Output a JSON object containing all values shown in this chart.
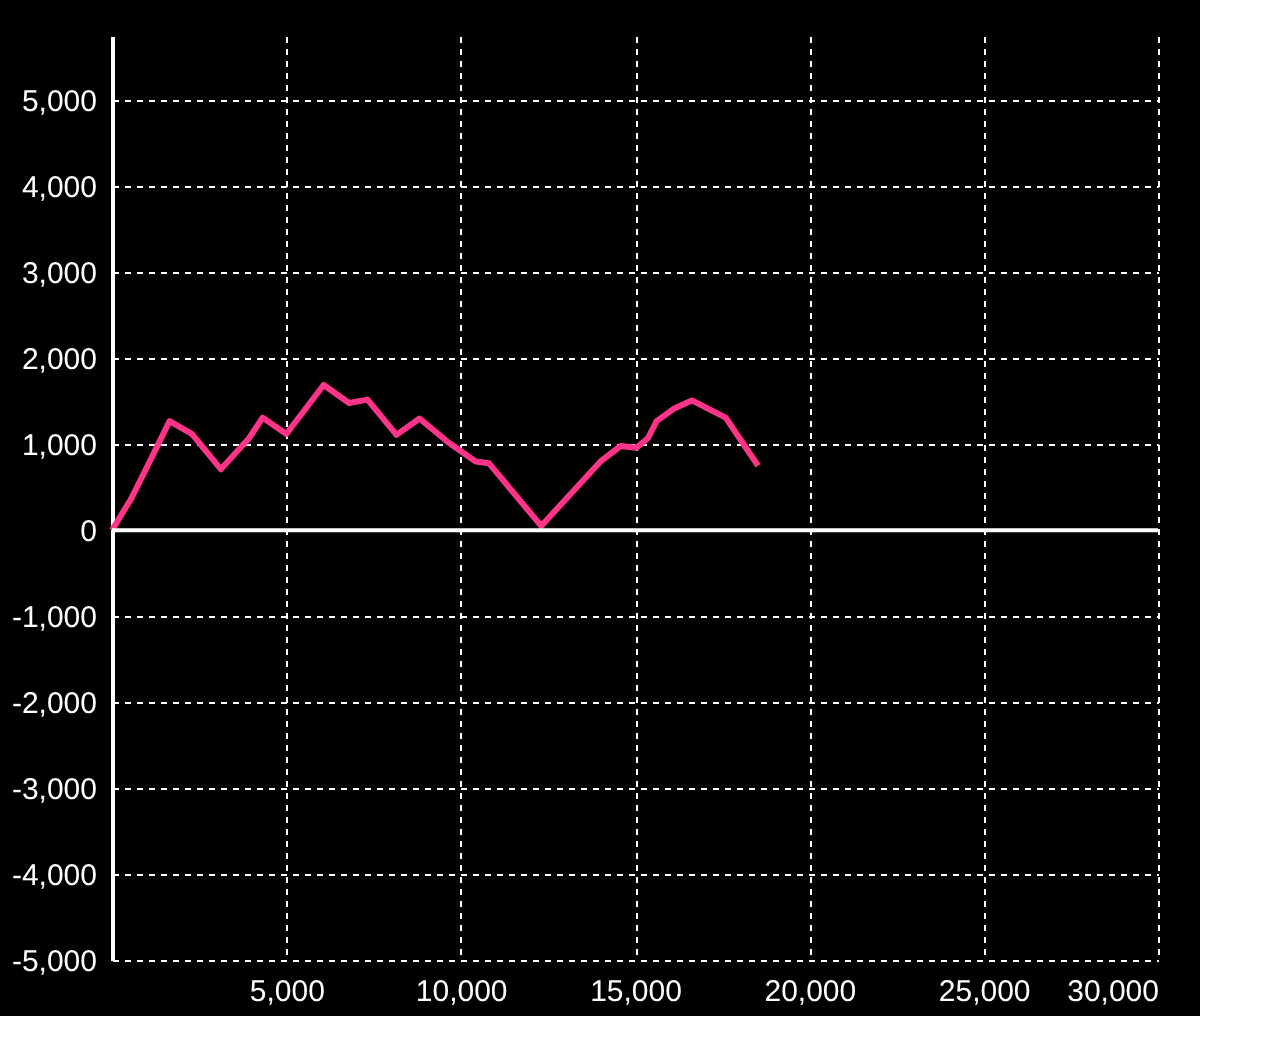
{
  "chart_data": {
    "type": "line",
    "x": [
      0,
      540,
      1120,
      1650,
      2290,
      3120,
      3930,
      4320,
      5000,
      6070,
      6800,
      7330,
      8160,
      8820,
      9650,
      10430,
      10810,
      12310,
      13240,
      14010,
      14590,
      15040,
      15370,
      15620,
      16140,
      16630,
      17600,
      18530
    ],
    "series": [
      {
        "color": "#ff3388",
        "values": [
          0,
          360,
          830,
          1270,
          1120,
          710,
          1070,
          1310,
          1120,
          1690,
          1480,
          1520,
          1110,
          1300,
          1020,
          800,
          780,
          50,
          460,
          800,
          980,
          960,
          1070,
          1270,
          1420,
          1510,
          1310,
          750
        ]
      }
    ],
    "xlim": [
      0,
      30000
    ],
    "ylim": [
      -5000,
      5750
    ],
    "xticks": [
      {
        "value": 5000,
        "label": "5,000"
      },
      {
        "value": 10000,
        "label": "10,000"
      },
      {
        "value": 15000,
        "label": "15,000"
      },
      {
        "value": 20000,
        "label": "20,000"
      },
      {
        "value": 25000,
        "label": "25,000"
      },
      {
        "value": 30000,
        "label": "30,000"
      }
    ],
    "yticks": [
      {
        "value": -5000,
        "label": "-5,000"
      },
      {
        "value": -4000,
        "label": "-4,000"
      },
      {
        "value": -3000,
        "label": "-3,000"
      },
      {
        "value": -2000,
        "label": "-2,000"
      },
      {
        "value": -1000,
        "label": "-1,000"
      },
      0,
      {
        "value": 1000,
        "label": "1,000"
      },
      {
        "value": 2000,
        "label": "2,000"
      },
      {
        "value": 3000,
        "label": "3,000"
      },
      {
        "value": 4000,
        "label": "4,000"
      },
      {
        "value": 5000,
        "label": "5,000"
      }
    ],
    "ref_lines": [
      {
        "axis": "y",
        "value": 0,
        "color": "#ffffff"
      }
    ],
    "grid": true,
    "marker": "none",
    "line_style": "solid"
  }
}
